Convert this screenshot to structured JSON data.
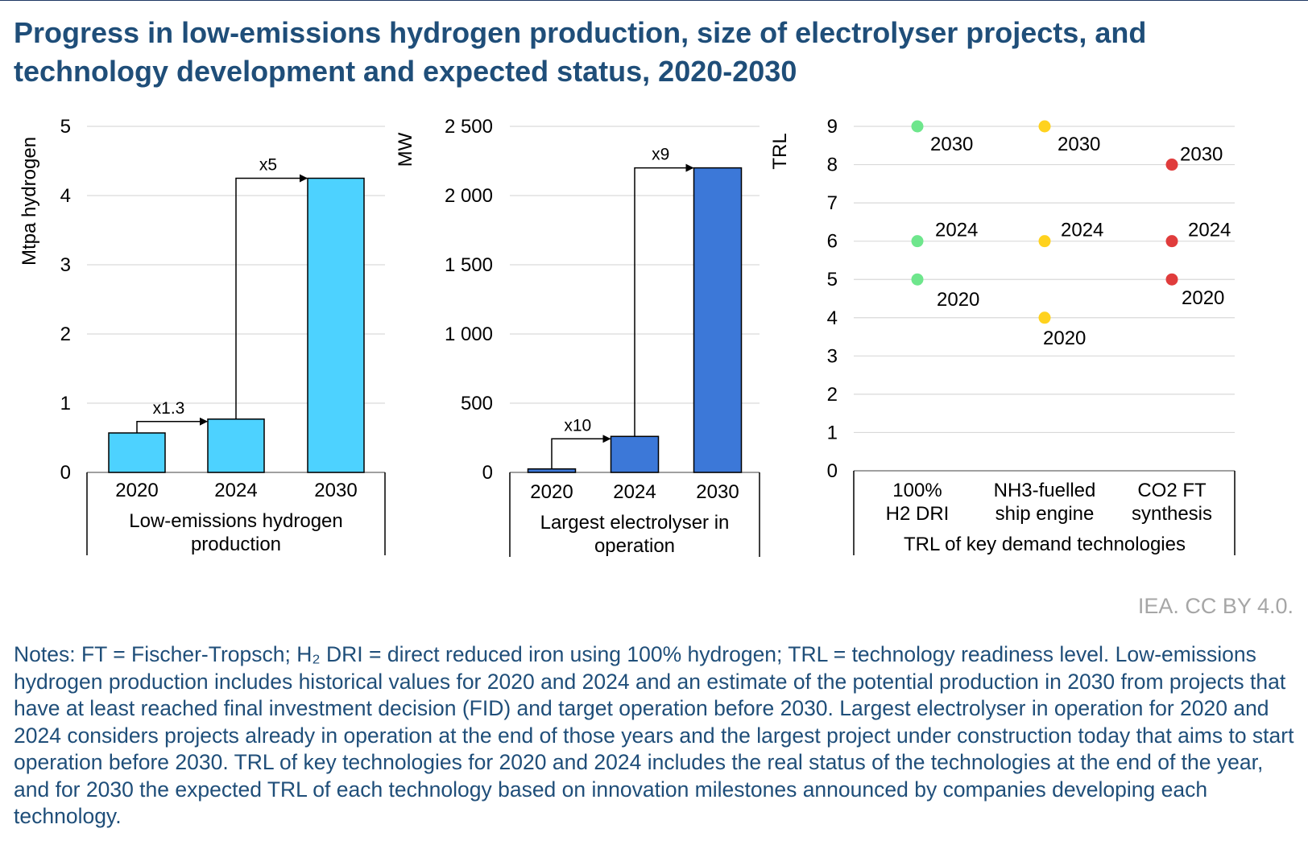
{
  "title": "Progress in low-emissions hydrogen production, size of electrolyser projects, and technology development and expected status, 2020-2030",
  "credit": "IEA. CC BY 4.0.",
  "notes": "Notes: FT = Fischer-Tropsch; H₂ DRI = direct reduced iron using 100% hydrogen; TRL = technology readiness level. Low-emissions hydrogen production includes historical values for 2020 and 2024 and an estimate of the potential production in 2030 from projects that have at least reached final investment decision (FID) and target operation before 2030. Largest electrolyser in operation for 2020 and 2024 considers projects already in operation at the end of those years and the largest project under construction today that aims to start operation before 2030. TRL of key technologies for 2020 and 2024 includes the real status of the technologies at the end of the year, and for 2030 the expected TRL of each technology based on innovation milestones announced by companies developing each technology.",
  "colors": {
    "cyan": "#4dd2ff",
    "blue": "#3c78d8",
    "green": "#6ee68c",
    "yellow": "#ffd21e",
    "red": "#e03c3c",
    "title": "#1f4e79",
    "grid": "#d9d9d9"
  },
  "chart_data": [
    {
      "type": "bar",
      "group_label": [
        "Low-emissions hydrogen",
        "production"
      ],
      "ylabel": "Mtpa hydrogen",
      "ylim": [
        0,
        5
      ],
      "yticks": [
        "0",
        "1",
        "2",
        "3",
        "4",
        "5"
      ],
      "categories": [
        "2020",
        "2024",
        "2030"
      ],
      "values": [
        0.57,
        0.77,
        4.25
      ],
      "color": "#4dd2ff",
      "annotations": [
        {
          "from": "2020",
          "to": "2024",
          "label": "x1.3"
        },
        {
          "from": "2024",
          "to": "2030",
          "label": "x5"
        }
      ],
      "grid": true
    },
    {
      "type": "bar",
      "group_label": [
        "Largest electrolyser in",
        "operation"
      ],
      "ylabel": "MW",
      "ylim": [
        0,
        2500
      ],
      "yticks": [
        "0",
        "500",
        "1 000",
        "1 500",
        "2 000",
        "2 500"
      ],
      "categories": [
        "2020",
        "2024",
        "2030"
      ],
      "values": [
        25,
        260,
        2200
      ],
      "color": "#3c78d8",
      "annotations": [
        {
          "from": "2020",
          "to": "2024",
          "label": "x10"
        },
        {
          "from": "2024",
          "to": "2030",
          "label": "x9"
        }
      ],
      "grid": true
    },
    {
      "type": "scatter",
      "group_label": [
        "TRL of key demand technologies"
      ],
      "ylabel": "TRL",
      "ylim": [
        0,
        9
      ],
      "yticks": [
        "0",
        "1",
        "2",
        "3",
        "4",
        "5",
        "6",
        "7",
        "8",
        "9"
      ],
      "categories": [
        [
          "100%",
          "H2 DRI"
        ],
        [
          "NH3-fuelled",
          "ship engine"
        ],
        [
          "CO2 FT",
          "synthesis"
        ]
      ],
      "points": [
        {
          "category": 0,
          "year": "2020",
          "trl": 5,
          "color": "#6ee68c"
        },
        {
          "category": 0,
          "year": "2024",
          "trl": 6,
          "color": "#6ee68c"
        },
        {
          "category": 0,
          "year": "2030",
          "trl": 9,
          "color": "#6ee68c"
        },
        {
          "category": 1,
          "year": "2020",
          "trl": 4,
          "color": "#ffd21e"
        },
        {
          "category": 1,
          "year": "2024",
          "trl": 6,
          "color": "#ffd21e"
        },
        {
          "category": 1,
          "year": "2030",
          "trl": 9,
          "color": "#ffd21e"
        },
        {
          "category": 2,
          "year": "2020",
          "trl": 5,
          "color": "#e03c3c"
        },
        {
          "category": 2,
          "year": "2024",
          "trl": 6,
          "color": "#e03c3c"
        },
        {
          "category": 2,
          "year": "2030",
          "trl": 8,
          "color": "#e03c3c"
        }
      ],
      "grid": true
    }
  ]
}
